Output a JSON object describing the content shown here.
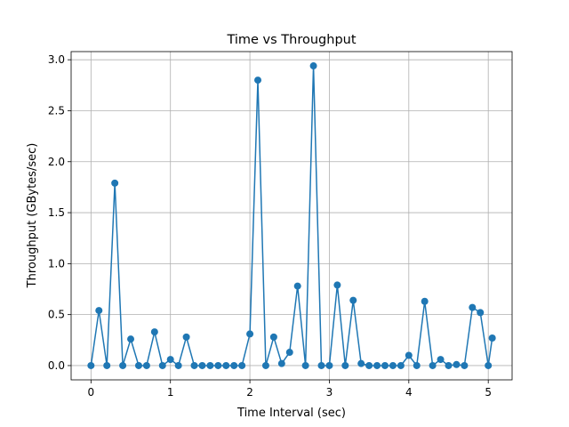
{
  "chart_data": {
    "type": "line",
    "title": "Time vs Throughput",
    "xlabel": "Time Interval (sec)",
    "ylabel": "Throughput (GBytes/sec)",
    "xlim": [
      -0.25,
      5.3
    ],
    "ylim": [
      -0.14,
      3.08
    ],
    "xticks": [
      0,
      1,
      2,
      3,
      4,
      5
    ],
    "xtick_labels": [
      "0",
      "1",
      "2",
      "3",
      "4",
      "5"
    ],
    "yticks": [
      0.0,
      0.5,
      1.0,
      1.5,
      2.0,
      2.5,
      3.0
    ],
    "ytick_labels": [
      "0.0",
      "0.5",
      "1.0",
      "1.5",
      "2.0",
      "2.5",
      "3.0"
    ],
    "grid": true,
    "color": "#1f77b4",
    "series": [
      {
        "x": [
          0.0,
          0.1,
          0.2,
          0.3,
          0.4,
          0.5,
          0.6,
          0.7,
          0.8,
          0.9,
          1.0,
          1.1,
          1.2,
          1.3,
          1.4,
          1.5,
          1.6,
          1.7,
          1.8,
          1.9,
          2.0,
          2.1,
          2.2,
          2.3,
          2.4,
          2.5,
          2.6,
          2.7,
          2.8,
          2.9,
          3.0,
          3.1,
          3.2,
          3.3,
          3.4,
          3.5,
          3.6,
          3.7,
          3.8,
          3.9,
          4.0,
          4.1,
          4.2,
          4.3,
          4.4,
          4.5,
          4.6,
          4.7,
          4.8,
          4.9,
          5.0,
          5.05
        ],
        "y": [
          0.0,
          0.54,
          0.0,
          1.79,
          0.0,
          0.26,
          0.0,
          0.0,
          0.33,
          0.0,
          0.06,
          0.0,
          0.28,
          0.0,
          0.0,
          0.0,
          0.0,
          0.0,
          0.0,
          0.0,
          0.31,
          2.8,
          0.0,
          0.28,
          0.02,
          0.13,
          0.78,
          0.0,
          2.94,
          0.0,
          0.0,
          0.79,
          0.0,
          0.64,
          0.02,
          0.0,
          0.0,
          0.0,
          0.0,
          0.0,
          0.1,
          0.0,
          0.63,
          0.0,
          0.06,
          0.0,
          0.01,
          0.0,
          0.57,
          0.52,
          0.0,
          0.27
        ]
      }
    ]
  }
}
